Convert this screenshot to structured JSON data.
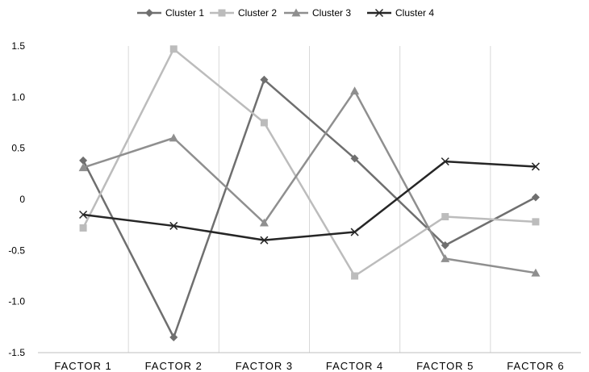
{
  "chart_data": {
    "type": "line",
    "categories": [
      "FACTOR 1",
      "FACTOR 2",
      "FACTOR 3",
      "FACTOR 4",
      "FACTOR 5",
      "FACTOR 6"
    ],
    "ylim": [
      -1.5,
      1.5
    ],
    "yticks": [
      1.5,
      1.0,
      0.5,
      0,
      -0.5,
      -1.0,
      -1.5
    ],
    "ytick_labels": [
      "1.5",
      "1.0",
      "0.5",
      "0",
      "-0.5",
      "-1.0",
      "-1.5"
    ],
    "grid": "vertical category separators",
    "legend": "top-center",
    "series": [
      {
        "name": "Cluster 1",
        "marker": "diamond",
        "color": "#6f6f6f",
        "values": [
          0.38,
          -1.35,
          1.17,
          0.4,
          -0.45,
          0.02
        ]
      },
      {
        "name": "Cluster 2",
        "marker": "square",
        "color": "#bcbcbc",
        "values": [
          -0.28,
          1.47,
          0.75,
          -0.75,
          -0.17,
          -0.22
        ]
      },
      {
        "name": "Cluster 3",
        "marker": "triangle",
        "color": "#8f8f8f",
        "values": [
          0.31,
          0.6,
          -0.23,
          1.06,
          -0.58,
          -0.72
        ]
      },
      {
        "name": "Cluster 4",
        "marker": "x",
        "color": "#262626",
        "values": [
          -0.15,
          -0.26,
          -0.4,
          -0.32,
          0.37,
          0.32
        ]
      }
    ]
  }
}
